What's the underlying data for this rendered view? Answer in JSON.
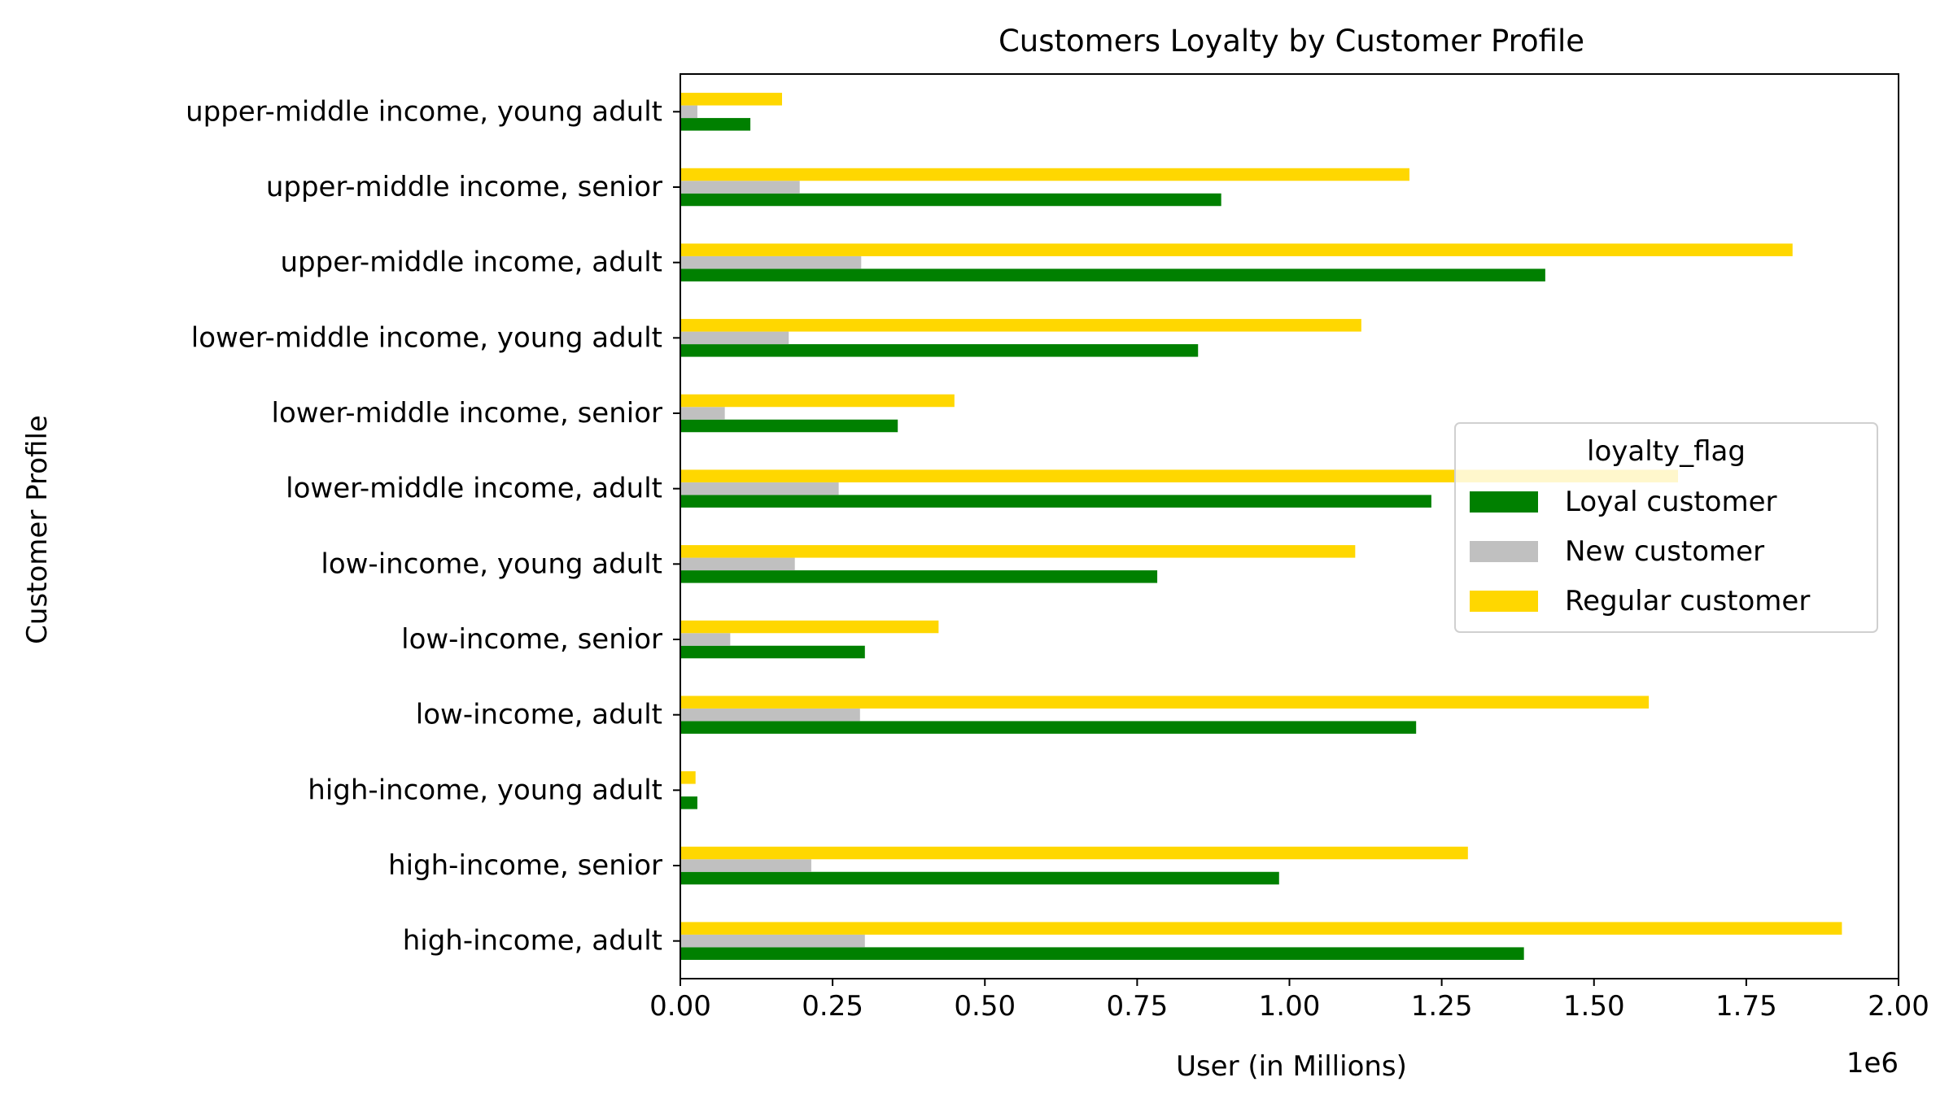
{
  "chart_data": {
    "type": "bar",
    "orientation": "horizontal",
    "title": "Customers Loyalty by Customer Profile",
    "xlabel": "User (in Millions)",
    "ylabel": "Customer Profile",
    "x_offset_label": "1e6",
    "xlim": [
      0,
      2000000
    ],
    "xticks": [
      0,
      250000,
      500000,
      750000,
      1000000,
      1250000,
      1500000,
      1750000,
      2000000
    ],
    "xtick_labels": [
      "0.00",
      "0.25",
      "0.50",
      "0.75",
      "1.00",
      "1.25",
      "1.50",
      "1.75",
      "2.00"
    ],
    "grid": false,
    "categories": [
      "high-income, adult",
      "high-income, senior",
      "high-income, young adult",
      "low-income, adult",
      "low-income, senior",
      "low-income, young adult",
      "lower-middle income, adult",
      "lower-middle income, senior",
      "lower-middle income, young adult",
      "upper-middle income, adult",
      "upper-middle income, senior",
      "upper-middle income, young adult"
    ],
    "series": [
      {
        "name": "Loyal customer",
        "color": "#008000",
        "values": [
          1385000,
          983000,
          28000,
          1208000,
          303000,
          783000,
          1233000,
          357000,
          850000,
          1420000,
          888000,
          115000
        ]
      },
      {
        "name": "New customer",
        "color": "#c0c0c0",
        "values": [
          303000,
          215000,
          2000,
          295000,
          82000,
          188000,
          260000,
          73000,
          178000,
          297000,
          196000,
          28000
        ]
      },
      {
        "name": "Regular customer",
        "color": "#ffd700",
        "values": [
          1907000,
          1293000,
          25000,
          1590000,
          424000,
          1108000,
          1638000,
          450000,
          1118000,
          1826000,
          1197000,
          167000
        ]
      }
    ],
    "legend": {
      "title": "loyalty_flag",
      "placement": "center-right"
    }
  }
}
